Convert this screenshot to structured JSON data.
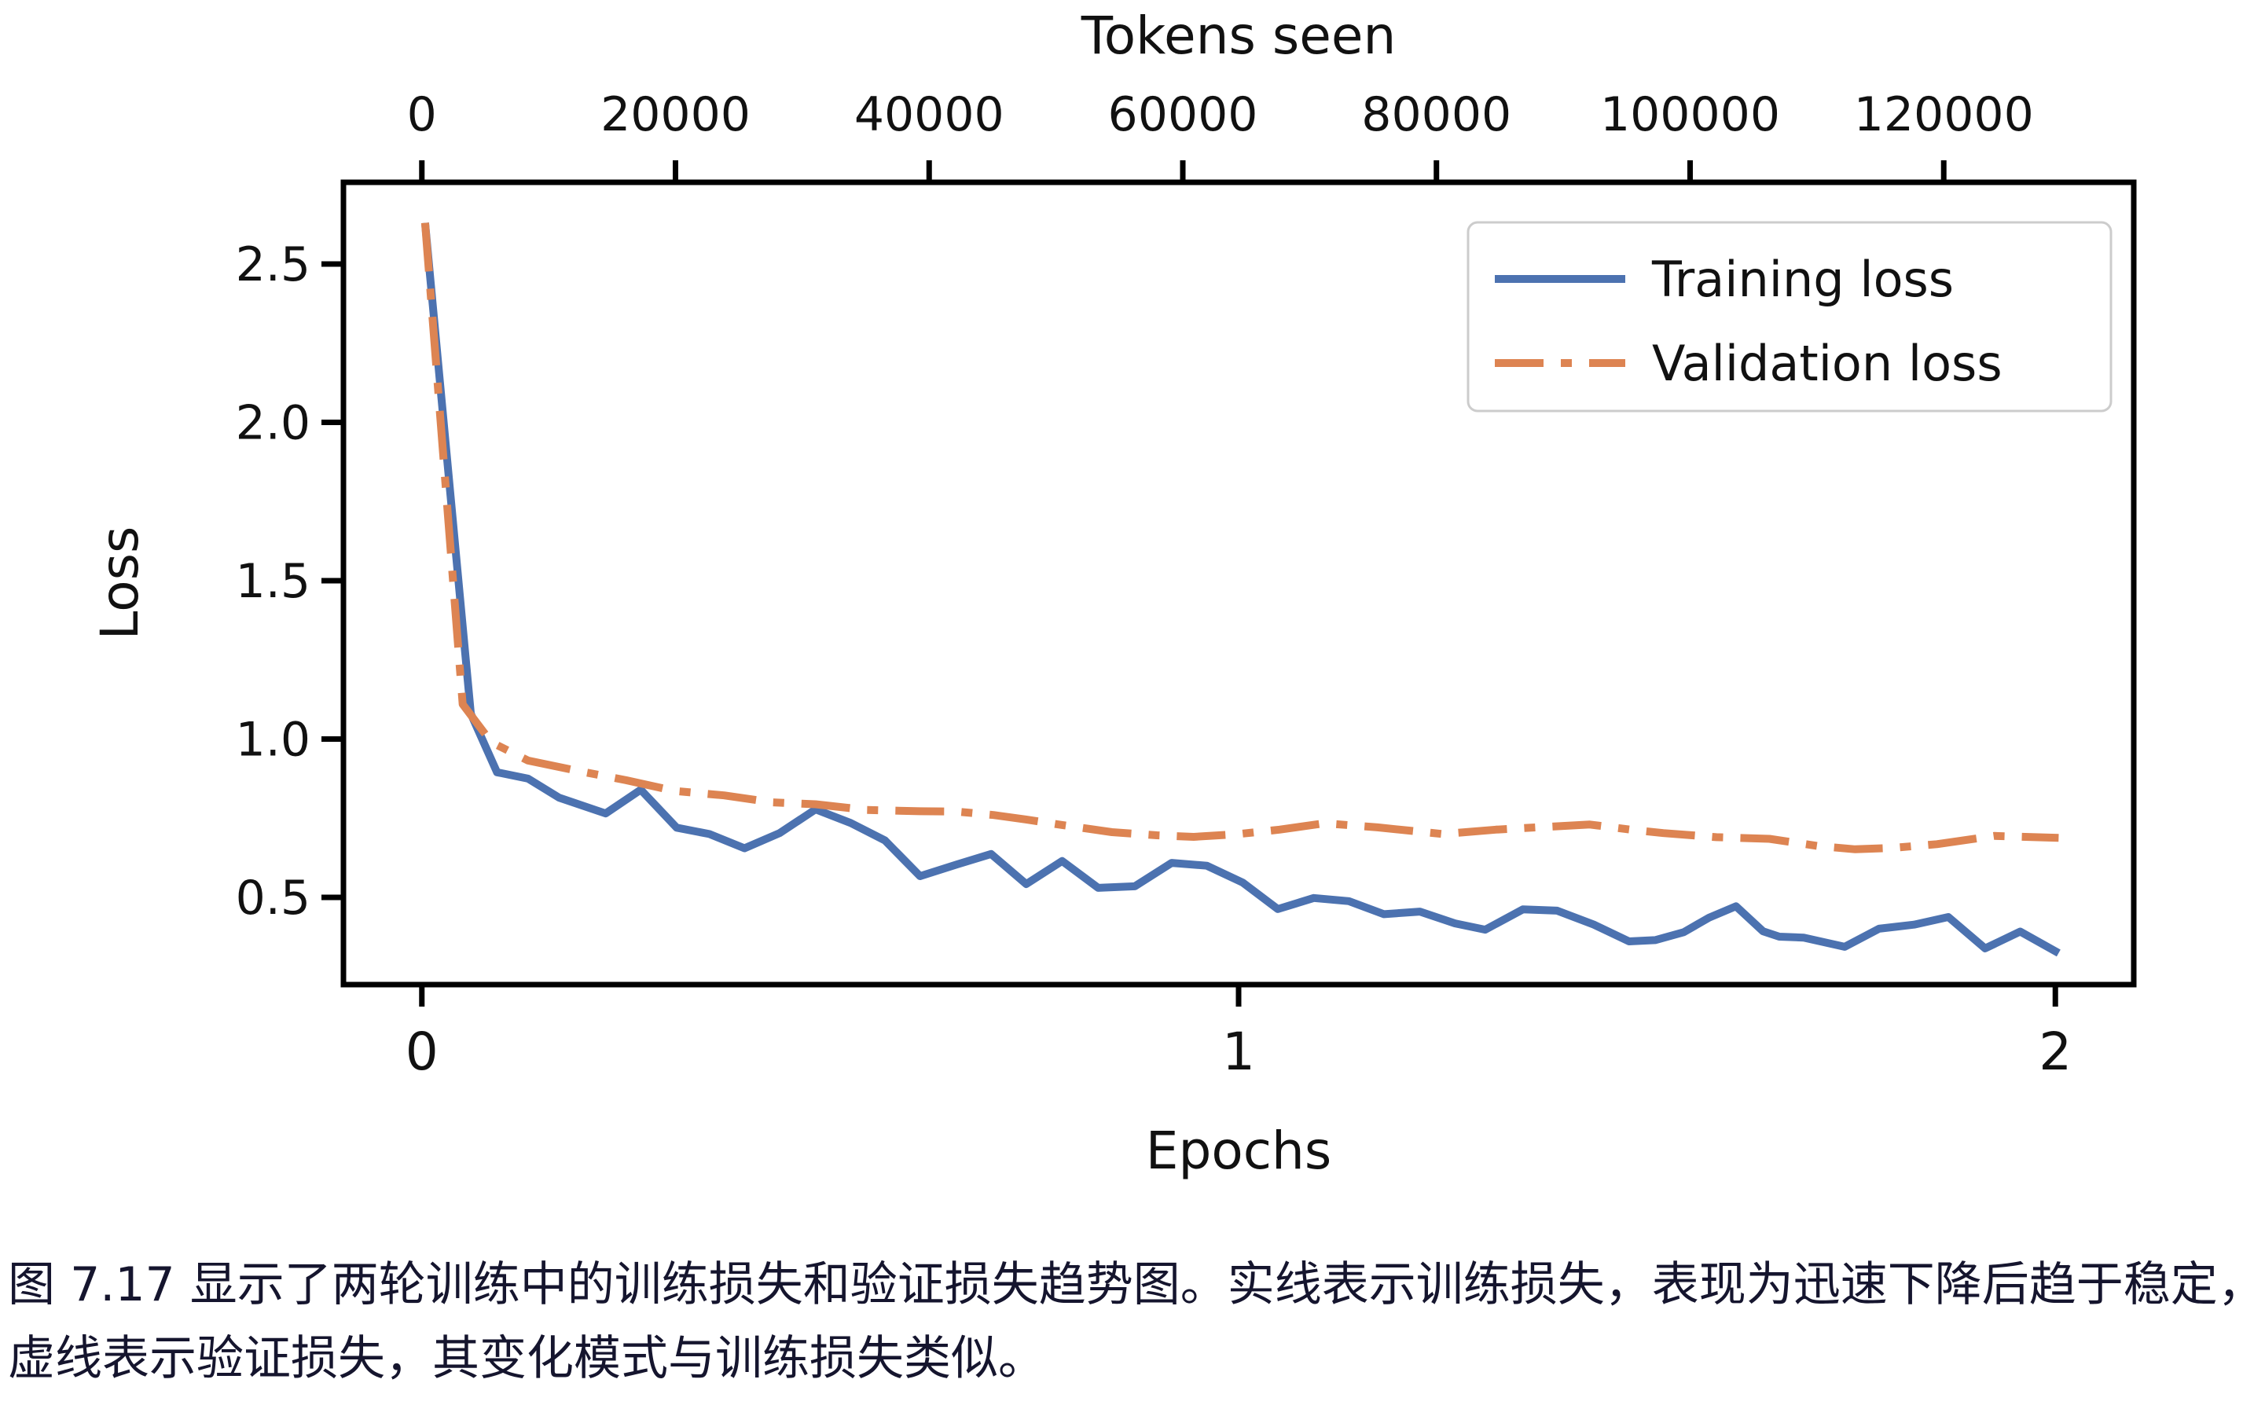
{
  "figure": {
    "caption_line1": "图 7.17 显示了两轮训练中的训练损失和验证损失趋势图。实线表示训练损失，表现为迅速下降后趋于稳定，",
    "caption_line2": "虚线表示验证损失，其变化模式与训练损失类似。"
  },
  "colors": {
    "training": "#4C72B0",
    "validation": "#DD8452",
    "axis": "#000000",
    "tick_label": "#111111",
    "legend_border": "#cccccc",
    "caption_text": "#15152e",
    "background": "#ffffff"
  },
  "chart_data": {
    "type": "line",
    "title": "",
    "top_xlabel": "Tokens seen",
    "xlabel": "Epochs",
    "ylabel": "Loss",
    "grid": false,
    "legend_position": "upper right",
    "xlim_epochs": [
      -0.096,
      2.096
    ],
    "ylim_loss": [
      0.2246,
      2.758
    ],
    "x_ticks_epochs": [
      0,
      1,
      2
    ],
    "y_ticks_loss": [
      0.5,
      1.0,
      1.5,
      2.0,
      2.5
    ],
    "top_ticks_tokens": [
      0,
      20000,
      40000,
      60000,
      80000,
      100000,
      120000
    ],
    "top_axis_alignment_tokens_per_epoch": 64400,
    "series": [
      {
        "name": "Training loss",
        "color": "#4C72B0",
        "style": "solid",
        "points": [
          [
            0.004,
            2.63
          ],
          [
            0.06,
            1.08
          ],
          [
            0.092,
            0.895
          ],
          [
            0.13,
            0.875
          ],
          [
            0.168,
            0.815
          ],
          [
            0.225,
            0.765
          ],
          [
            0.268,
            0.84
          ],
          [
            0.312,
            0.72
          ],
          [
            0.352,
            0.7
          ],
          [
            0.395,
            0.655
          ],
          [
            0.438,
            0.703
          ],
          [
            0.482,
            0.778
          ],
          [
            0.525,
            0.735
          ],
          [
            0.567,
            0.68
          ],
          [
            0.61,
            0.567
          ],
          [
            0.655,
            0.604
          ],
          [
            0.697,
            0.637
          ],
          [
            0.74,
            0.542
          ],
          [
            0.784,
            0.615
          ],
          [
            0.828,
            0.53
          ],
          [
            0.873,
            0.535
          ],
          [
            0.918,
            0.609
          ],
          [
            0.961,
            0.6
          ],
          [
            1.005,
            0.547
          ],
          [
            1.048,
            0.463
          ],
          [
            1.092,
            0.498
          ],
          [
            1.135,
            0.488
          ],
          [
            1.178,
            0.447
          ],
          [
            1.222,
            0.455
          ],
          [
            1.265,
            0.418
          ],
          [
            1.302,
            0.398
          ],
          [
            1.348,
            0.462
          ],
          [
            1.39,
            0.458
          ],
          [
            1.435,
            0.414
          ],
          [
            1.478,
            0.361
          ],
          [
            1.51,
            0.365
          ],
          [
            1.545,
            0.39
          ],
          [
            1.576,
            0.436
          ],
          [
            1.609,
            0.472
          ],
          [
            1.642,
            0.393
          ],
          [
            1.662,
            0.376
          ],
          [
            1.692,
            0.373
          ],
          [
            1.742,
            0.344
          ],
          [
            1.784,
            0.401
          ],
          [
            1.827,
            0.414
          ],
          [
            1.869,
            0.438
          ],
          [
            1.914,
            0.339
          ],
          [
            1.957,
            0.392
          ],
          [
            2.004,
            0.324
          ]
        ]
      },
      {
        "name": "Validation loss",
        "color": "#DD8452",
        "style": "dashdot",
        "points": [
          [
            0.004,
            2.63
          ],
          [
            0.05,
            1.11
          ],
          [
            0.085,
            0.99
          ],
          [
            0.13,
            0.932
          ],
          [
            0.19,
            0.9
          ],
          [
            0.25,
            0.87
          ],
          [
            0.31,
            0.836
          ],
          [
            0.37,
            0.822
          ],
          [
            0.43,
            0.8
          ],
          [
            0.482,
            0.794
          ],
          [
            0.545,
            0.776
          ],
          [
            0.61,
            0.772
          ],
          [
            0.655,
            0.771
          ],
          [
            0.7,
            0.76
          ],
          [
            0.74,
            0.746
          ],
          [
            0.785,
            0.728
          ],
          [
            0.845,
            0.706
          ],
          [
            0.9,
            0.696
          ],
          [
            0.945,
            0.691
          ],
          [
            1.0,
            0.7
          ],
          [
            1.05,
            0.714
          ],
          [
            1.105,
            0.734
          ],
          [
            1.17,
            0.721
          ],
          [
            1.25,
            0.7
          ],
          [
            1.315,
            0.714
          ],
          [
            1.365,
            0.721
          ],
          [
            1.43,
            0.73
          ],
          [
            1.48,
            0.714
          ],
          [
            1.52,
            0.703
          ],
          [
            1.585,
            0.69
          ],
          [
            1.65,
            0.685
          ],
          [
            1.71,
            0.662
          ],
          [
            1.755,
            0.652
          ],
          [
            1.8,
            0.656
          ],
          [
            1.855,
            0.668
          ],
          [
            1.925,
            0.694
          ],
          [
            2.004,
            0.688
          ]
        ]
      }
    ]
  }
}
